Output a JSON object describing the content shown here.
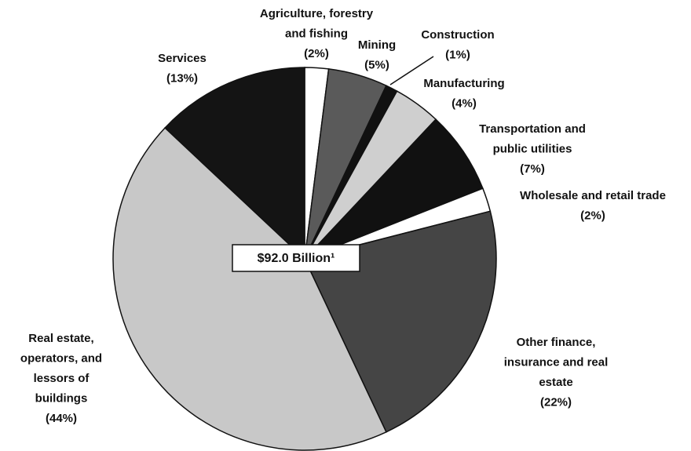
{
  "chart_data": {
    "type": "pie",
    "categories": [
      [
        "Agriculture, forestry",
        "and fishing"
      ],
      [
        "Mining"
      ],
      [
        "Construction"
      ],
      [
        "Manufacturing"
      ],
      [
        "Transportation and",
        "public utilities"
      ],
      [
        "Wholesale and retail trade"
      ],
      [
        "Other finance,",
        "insurance and real",
        "estate"
      ],
      [
        "Real estate,",
        "operators, and",
        "lessors of",
        "buildings"
      ],
      [
        "Services"
      ]
    ],
    "values": [
      2,
      5,
      1,
      4,
      7,
      2,
      22,
      44,
      13
    ],
    "value_labels": [
      "(2%)",
      "(5%)",
      "(1%)",
      "(4%)",
      "(7%)",
      "(2%)",
      "(22%)",
      "(44%)",
      "(13%)"
    ],
    "colors": [
      "#ffffff",
      "#5a5a5a",
      "#111111",
      "#cfcfcf",
      "#111111",
      "#ffffff",
      "#454545",
      "#c8c8c8",
      "#141414"
    ],
    "center_label": "$92.0 Billion¹"
  }
}
